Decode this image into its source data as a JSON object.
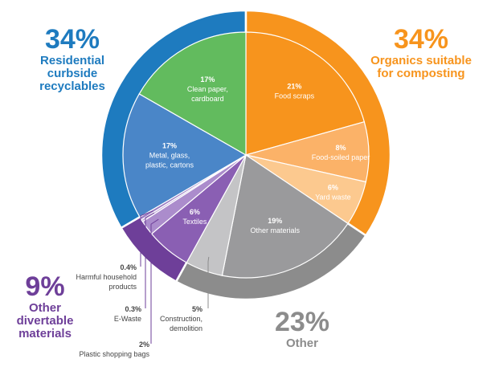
{
  "chart_data": {
    "type": "pie",
    "groups": [
      {
        "name": "Residential curbside recyclables",
        "value": 34,
        "label": "34%",
        "color": "#1e7bbf"
      },
      {
        "name": "Organics suitable for composting",
        "value": 34,
        "label": "34%",
        "color": "#f7941d"
      },
      {
        "name": "Other",
        "value": 23,
        "label": "23%",
        "color": "#8c8c8c"
      },
      {
        "name": "Other divertable materials",
        "value": 9,
        "label": "9%",
        "color": "#6e3f99"
      }
    ],
    "slices": [
      {
        "label": "Food scraps",
        "value": 21,
        "value_label": "21%",
        "group": 1,
        "color": "#f7941d"
      },
      {
        "label": "Food-soiled paper",
        "value": 8,
        "value_label": "8%",
        "group": 1,
        "color": "#fbb268"
      },
      {
        "label": "Yard waste",
        "value": 6,
        "value_label": "6%",
        "group": 1,
        "color": "#fcc98f"
      },
      {
        "label": "Other materials",
        "value": 19,
        "value_label": "19%",
        "group": 2,
        "color": "#9a9a9c"
      },
      {
        "label": "Construction, demolition",
        "value": 5,
        "value_label": "5%",
        "group": 2,
        "color": "#c4c4c6"
      },
      {
        "label": "Textiles",
        "value": 6,
        "value_label": "6%",
        "group": 3,
        "color": "#8a5fb3"
      },
      {
        "label": "Plastic shopping bags",
        "value": 2,
        "value_label": "2%",
        "group": 3,
        "color": "#ab8ccc"
      },
      {
        "label": "E-Waste",
        "value": 0.3,
        "value_label": "0.3%",
        "group": 3,
        "color": "#c4b0dc"
      },
      {
        "label": "Harmful household products",
        "value": 0.4,
        "value_label": "0.4%",
        "group": 3,
        "color": "#9a7bc2"
      },
      {
        "label": "Metal, glass, plastic, cartons",
        "value": 17,
        "value_label": "17%",
        "group": 0,
        "color": "#4a86c8"
      },
      {
        "label": "Clean paper, cardboard",
        "value": 17,
        "value_label": "17%",
        "group": 0,
        "color": "#62bb5e"
      }
    ],
    "group_labels": {
      "recyclables": {
        "pct": "34%",
        "lines": [
          "Residential",
          "curbside",
          "recyclables"
        ],
        "color": "#1e7bbf"
      },
      "organics": {
        "pct": "34%",
        "lines": [
          "Organics suitable",
          "for composting"
        ],
        "color": "#f7941d"
      },
      "other": {
        "pct": "23%",
        "lines": [
          "Other"
        ],
        "color": "#8c8c8c"
      },
      "divertable": {
        "pct": "9%",
        "lines": [
          "Other",
          "divertable",
          "materials"
        ],
        "color": "#6e3f99"
      }
    }
  }
}
